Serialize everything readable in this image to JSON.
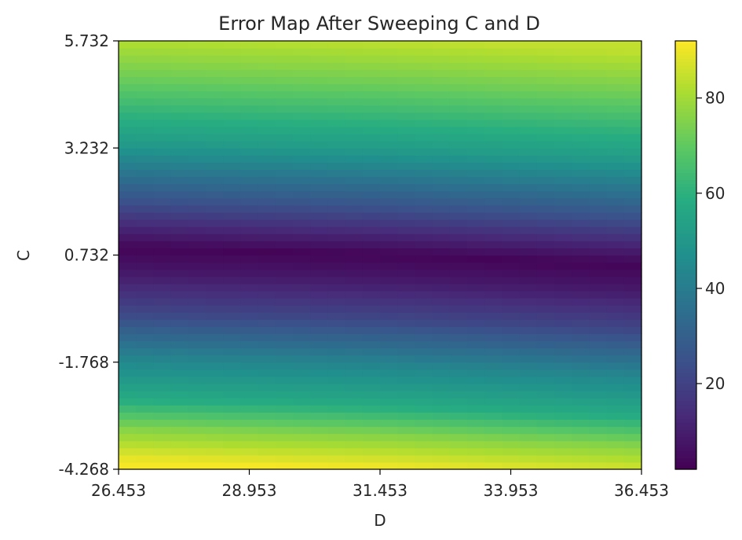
{
  "chart_data": {
    "type": "heatmap",
    "title": "Error Map After Sweeping C and D",
    "xlabel": "D",
    "ylabel": "C",
    "x_ticks": [
      "26.453",
      "28.953",
      "31.453",
      "33.953",
      "36.453"
    ],
    "y_ticks": [
      "5.732",
      "3.232",
      "0.732",
      "-1.768",
      "-4.268"
    ],
    "x_tick_values": [
      26.453,
      28.953,
      31.453,
      33.953,
      36.453
    ],
    "y_tick_values": [
      5.732,
      3.232,
      0.732,
      -1.768,
      -4.268
    ],
    "xlim": [
      26.453,
      36.453
    ],
    "ylim": [
      -4.268,
      5.732
    ],
    "colorbar": {
      "colormap": "viridis",
      "range": [
        2,
        92
      ],
      "ticks": [
        "20",
        "40",
        "60",
        "80"
      ],
      "tick_values": [
        20,
        40,
        60,
        80
      ]
    },
    "error_profile_along_C": {
      "C": [
        5.732,
        4.7,
        3.232,
        2.2,
        1.2,
        0.732,
        0.2,
        -0.8,
        -1.768,
        -2.8,
        -3.5,
        -4.268
      ],
      "error": [
        84,
        72,
        52,
        32,
        12,
        3,
        8,
        22,
        42,
        58,
        76,
        91
      ]
    },
    "minimum_C_by_D": {
      "D": [
        26.453,
        31.453,
        36.453
      ],
      "C": [
        0.9,
        0.75,
        0.5
      ]
    }
  }
}
